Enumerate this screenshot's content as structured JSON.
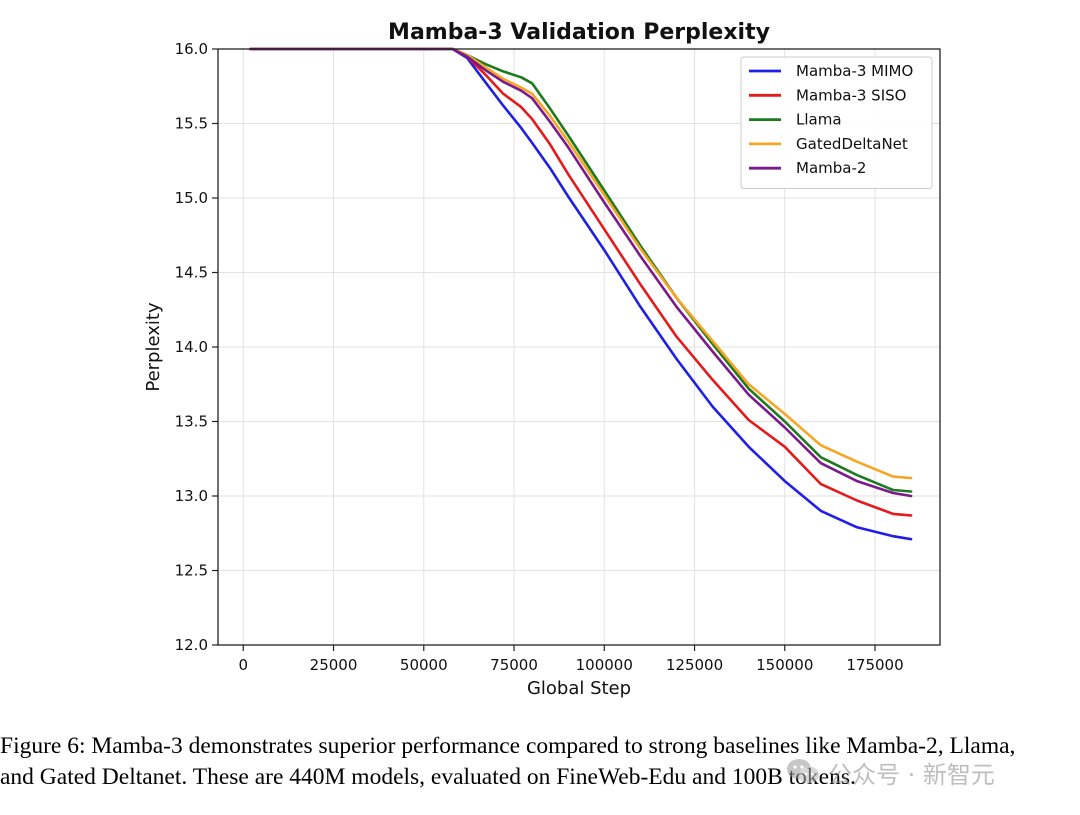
{
  "chart_data": {
    "type": "line",
    "title": "Mamba-3 Validation Perplexity",
    "xlabel": "Global Step",
    "ylabel": "Perplexity",
    "xlim": [
      -7000,
      193000
    ],
    "ylim": [
      12.0,
      16.0
    ],
    "x_ticks": [
      0,
      25000,
      50000,
      75000,
      100000,
      125000,
      150000,
      175000
    ],
    "y_ticks": [
      12.0,
      12.5,
      13.0,
      13.5,
      14.0,
      14.5,
      15.0,
      15.5,
      16.0
    ],
    "grid": true,
    "legend_position": "top-right",
    "series": [
      {
        "name": "Mamba-3 MIMO",
        "color": "#1f1fe6",
        "x": [
          2000,
          20000,
          40000,
          58000,
          62000,
          67000,
          72000,
          77000,
          80000,
          85000,
          90000,
          100000,
          110000,
          120000,
          130000,
          140000,
          150000,
          160000,
          170000,
          180000,
          185000
        ],
        "y": [
          16.0,
          16.0,
          16.0,
          16.0,
          15.94,
          15.78,
          15.62,
          15.47,
          15.37,
          15.2,
          15.01,
          14.65,
          14.27,
          13.92,
          13.6,
          13.33,
          13.1,
          12.9,
          12.79,
          12.73,
          12.71
        ]
      },
      {
        "name": "Mamba-3 SISO",
        "color": "#e61a1a",
        "x": [
          2000,
          20000,
          40000,
          58000,
          62000,
          67000,
          72000,
          77000,
          80000,
          85000,
          90000,
          100000,
          110000,
          120000,
          130000,
          140000,
          150000,
          160000,
          170000,
          180000,
          185000
        ],
        "y": [
          16.0,
          16.0,
          16.0,
          16.0,
          15.95,
          15.83,
          15.7,
          15.61,
          15.53,
          15.36,
          15.16,
          14.79,
          14.42,
          14.07,
          13.78,
          13.51,
          13.33,
          13.08,
          12.97,
          12.88,
          12.87
        ]
      },
      {
        "name": "Llama",
        "color": "#1e7a1e",
        "x": [
          2000,
          20000,
          40000,
          58000,
          62000,
          67000,
          72000,
          77000,
          80000,
          85000,
          90000,
          100000,
          110000,
          120000,
          130000,
          140000,
          150000,
          160000,
          170000,
          180000,
          185000
        ],
        "y": [
          16.0,
          16.0,
          16.0,
          16.0,
          15.96,
          15.9,
          15.85,
          15.81,
          15.77,
          15.6,
          15.42,
          15.05,
          14.68,
          14.33,
          14.02,
          13.72,
          13.5,
          13.26,
          13.14,
          13.04,
          13.03
        ]
      },
      {
        "name": "GatedDeltaNet",
        "color": "#f5a623",
        "x": [
          2000,
          20000,
          40000,
          58000,
          62000,
          67000,
          72000,
          77000,
          80000,
          85000,
          90000,
          100000,
          110000,
          120000,
          130000,
          140000,
          150000,
          160000,
          170000,
          180000,
          185000
        ],
        "y": [
          16.0,
          16.0,
          16.0,
          16.0,
          15.96,
          15.88,
          15.8,
          15.74,
          15.7,
          15.55,
          15.38,
          15.02,
          14.66,
          14.33,
          14.04,
          13.75,
          13.55,
          13.34,
          13.23,
          13.13,
          13.12
        ]
      },
      {
        "name": "Mamba-2",
        "color": "#7a1a8c",
        "x": [
          2000,
          20000,
          40000,
          58000,
          62000,
          67000,
          72000,
          77000,
          80000,
          85000,
          90000,
          100000,
          110000,
          120000,
          130000,
          140000,
          150000,
          160000,
          170000,
          180000,
          185000
        ],
        "y": [
          16.0,
          16.0,
          16.0,
          16.0,
          15.95,
          15.86,
          15.78,
          15.72,
          15.67,
          15.51,
          15.34,
          14.97,
          14.61,
          14.27,
          13.97,
          13.68,
          13.46,
          13.22,
          13.1,
          13.02,
          13.0
        ]
      }
    ]
  },
  "caption": {
    "line1": "Figure 6: Mamba-3 demonstrates superior performance compared to strong baselines like Mamba-2, Llama,",
    "line2": "and Gated Deltanet. These are 440M models, evaluated on FineWeb-Edu and 100B tokens."
  },
  "watermark": {
    "text": "公众号 · 新智元",
    "icon": "wechat-icon"
  }
}
